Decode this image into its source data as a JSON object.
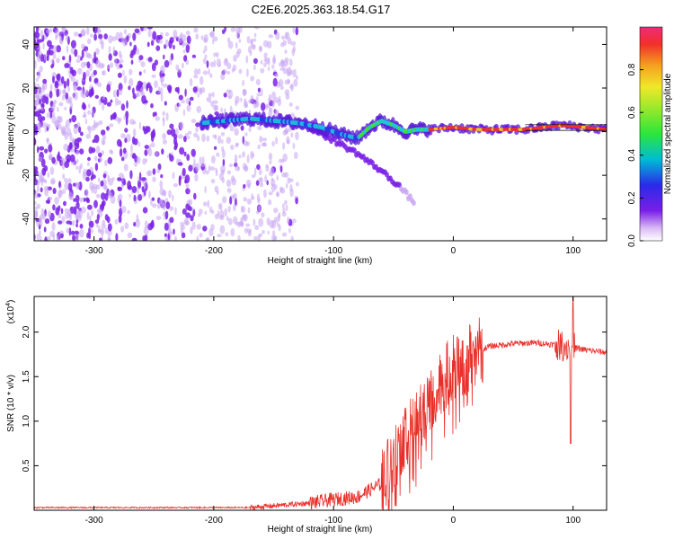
{
  "title": "C2E6.2025.363.18.54.G17",
  "colors": {
    "snr_line": "#e8302a",
    "frame": "#000000",
    "scatter_main": "#7a22e6",
    "scatter_light": "#c9a6f2"
  },
  "chart_data": [
    {
      "type": "heatmap",
      "name": "spectrogram",
      "xlabel": "Height of straight line (km)",
      "ylabel": "Frequency (Hz)",
      "xlim": [
        -350,
        128
      ],
      "ylim": [
        -50,
        48
      ],
      "x_ticks": [
        -300,
        -200,
        -100,
        0,
        100
      ],
      "x_tick_labels": [
        "-300",
        "-200",
        "-100",
        "0",
        "100"
      ],
      "y_ticks": [
        -40,
        -20,
        0,
        20,
        40
      ],
      "y_tick_labels": [
        "-40",
        "-20",
        "0",
        "20",
        "40"
      ],
      "colorbar": {
        "label": "Normalized spectral amplitude",
        "range": [
          0,
          1
        ],
        "ticks": [
          0.0,
          0.2,
          0.4,
          0.6,
          0.8
        ],
        "tick_labels": [
          "0.0",
          "0.2",
          "0.4",
          "0.6",
          "0.8"
        ]
      },
      "noise_region_x": [
        -350,
        -150
      ],
      "main_trace": [
        {
          "x": -210,
          "f": 4
        },
        {
          "x": -190,
          "f": 5
        },
        {
          "x": -170,
          "f": 6
        },
        {
          "x": -150,
          "f": 5
        },
        {
          "x": -130,
          "f": 4
        },
        {
          "x": -110,
          "f": 2
        },
        {
          "x": -95,
          "f": -1
        },
        {
          "x": -80,
          "f": -3
        },
        {
          "x": -70,
          "f": 2
        },
        {
          "x": -60,
          "f": 5
        },
        {
          "x": -50,
          "f": 3
        },
        {
          "x": -40,
          "f": 0
        },
        {
          "x": -30,
          "f": 1
        },
        {
          "x": -20,
          "f": 1
        },
        {
          "x": 0,
          "f": 2
        },
        {
          "x": 20,
          "f": 1
        },
        {
          "x": 60,
          "f": 1
        },
        {
          "x": 90,
          "f": 3
        },
        {
          "x": 128,
          "f": 1
        }
      ],
      "branch_trace": [
        {
          "x": -120,
          "f": 2
        },
        {
          "x": -100,
          "f": -4
        },
        {
          "x": -80,
          "f": -10
        },
        {
          "x": -60,
          "f": -18
        },
        {
          "x": -45,
          "f": -25
        },
        {
          "x": -32,
          "f": -33
        }
      ]
    },
    {
      "type": "line",
      "name": "snr",
      "xlabel": "Height of straight line (km)",
      "ylabel": "SNR (10 * v/v)",
      "exponent_label": "(x10",
      "exponent_power": "4",
      "exponent_close": ")",
      "xlim": [
        -350,
        128
      ],
      "ylim": [
        0,
        2.4
      ],
      "x_ticks": [
        -300,
        -200,
        -100,
        0,
        100
      ],
      "x_tick_labels": [
        "-300",
        "-200",
        "-100",
        "0",
        "100"
      ],
      "y_ticks": [
        0.5,
        1.0,
        1.5,
        2.0
      ],
      "y_tick_labels": [
        "0.5",
        "1.0",
        "1.5",
        "2.0"
      ],
      "envelope": [
        {
          "x": -350,
          "y": 0.03
        },
        {
          "x": -170,
          "y": 0.03
        },
        {
          "x": -150,
          "y": 0.05
        },
        {
          "x": -120,
          "y": 0.08
        },
        {
          "x": -100,
          "y": 0.12
        },
        {
          "x": -80,
          "y": 0.15
        },
        {
          "x": -60,
          "y": 0.3
        },
        {
          "x": -50,
          "y": 0.6
        },
        {
          "x": -40,
          "y": 0.85
        },
        {
          "x": -30,
          "y": 1.0
        },
        {
          "x": -20,
          "y": 1.25
        },
        {
          "x": -10,
          "y": 1.45
        },
        {
          "x": 0,
          "y": 1.6
        },
        {
          "x": 10,
          "y": 1.7
        },
        {
          "x": 20,
          "y": 1.78
        },
        {
          "x": 30,
          "y": 1.84
        },
        {
          "x": 50,
          "y": 1.87
        },
        {
          "x": 70,
          "y": 1.88
        },
        {
          "x": 90,
          "y": 1.85
        },
        {
          "x": 110,
          "y": 1.8
        },
        {
          "x": 128,
          "y": 1.77
        }
      ],
      "notable_points": [
        {
          "x": 98,
          "y": 0.75
        },
        {
          "x": 100,
          "y": 2.4
        }
      ]
    }
  ]
}
